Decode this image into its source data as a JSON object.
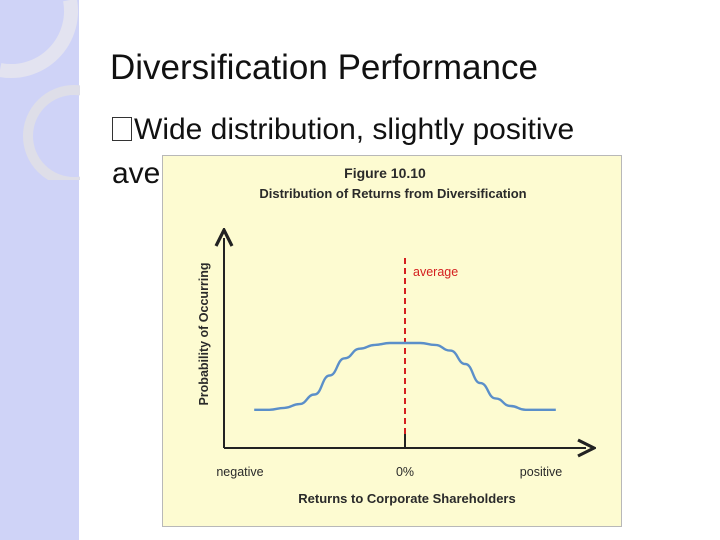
{
  "slide": {
    "title": "Diversification Performance",
    "bullet": "Wide distribution, slightly positive average"
  },
  "colors": {
    "sidebar": "#cfd3f7",
    "figure_background": "#fdfbd1",
    "curve": "#5b8fc9",
    "average_line": "#d42020",
    "title_text": "#111111"
  },
  "icons": {
    "bullet": "square-bullet-icon"
  },
  "chart_data": {
    "type": "line",
    "figure_label": "Figure 10.10",
    "title": "Distribution of Returns from Diversification",
    "xlabel": "Returns to Corporate Shareholders",
    "ylabel": "Probability of Occurring",
    "x_tick_labels": [
      "negative",
      "0%",
      "positive"
    ],
    "average_label": "average",
    "series": [
      {
        "values_description_note": "",
        "x": [
          -1.0,
          -0.9,
          -0.8,
          -0.7,
          -0.6,
          -0.5,
          -0.4,
          -0.3,
          -0.2,
          -0.1,
          0.0,
          0.1,
          0.2,
          0.3,
          0.4,
          0.5,
          0.6,
          0.7,
          0.8,
          0.9,
          1.0
        ],
        "y": [
          0.1,
          0.1,
          0.11,
          0.13,
          0.18,
          0.28,
          0.37,
          0.42,
          0.44,
          0.45,
          0.45,
          0.45,
          0.44,
          0.41,
          0.34,
          0.24,
          0.16,
          0.12,
          0.1,
          0.1,
          0.1
        ]
      }
    ],
    "average_x": 0.0,
    "xlim": [
      -1.2,
      1.2
    ],
    "ylim": [
      -0.1,
      1.0
    ],
    "grid": false,
    "legend": "none"
  }
}
